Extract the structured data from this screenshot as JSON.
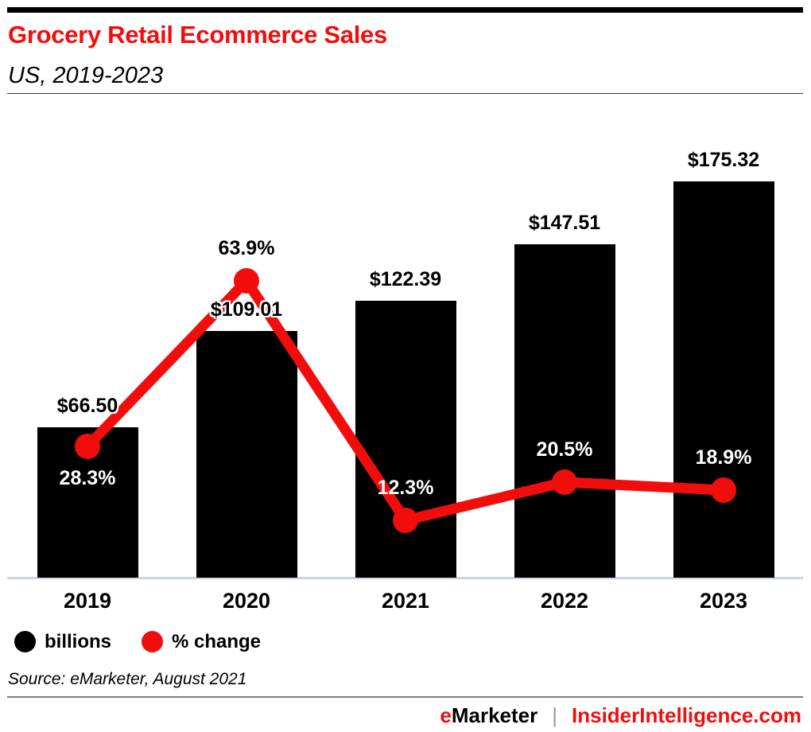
{
  "header": {
    "title": "Grocery Retail Ecommerce Sales",
    "subtitle": "US, 2019-2023",
    "accent_color": "#f20d0d"
  },
  "chart_data": {
    "type": "bar",
    "title": "Grocery Retail Ecommerce Sales",
    "subtitle": "US, 2019-2023",
    "categories": [
      "2019",
      "2020",
      "2021",
      "2022",
      "2023"
    ],
    "series": [
      {
        "name": "billions",
        "type": "bar",
        "color": "#000000",
        "values": [
          66.5,
          109.01,
          122.39,
          147.51,
          175.32
        ],
        "labels": [
          "$66.50",
          "$109.01",
          "$122.39",
          "$147.51",
          "$175.32"
        ]
      },
      {
        "name": "% change",
        "type": "line",
        "color": "#f20d0d",
        "values": [
          28.3,
          63.9,
          12.3,
          20.5,
          18.9
        ],
        "labels": [
          "28.3%",
          "63.9%",
          "12.3%",
          "20.5%",
          "18.9%"
        ],
        "label_placement": [
          "below",
          "above",
          "above",
          "above",
          "above"
        ],
        "label_colors": [
          "#ffffff",
          "#000000",
          "#ffffff",
          "#ffffff",
          "#ffffff"
        ]
      }
    ],
    "xlabel": "",
    "ylabel": "",
    "grid": false,
    "legend_position": "bottom-left",
    "axis_line_color": "#ccd3e2"
  },
  "legend": {
    "items": [
      {
        "label": "billions",
        "color": "#000000"
      },
      {
        "label": "% change",
        "color": "#f20d0d"
      }
    ]
  },
  "source": "Source: eMarketer, August 2021",
  "footer": {
    "brand_accent": "e",
    "brand_rest": "Marketer",
    "separator": "|",
    "site": "InsiderIntelligence.com",
    "site_color": "#f20d0d"
  }
}
